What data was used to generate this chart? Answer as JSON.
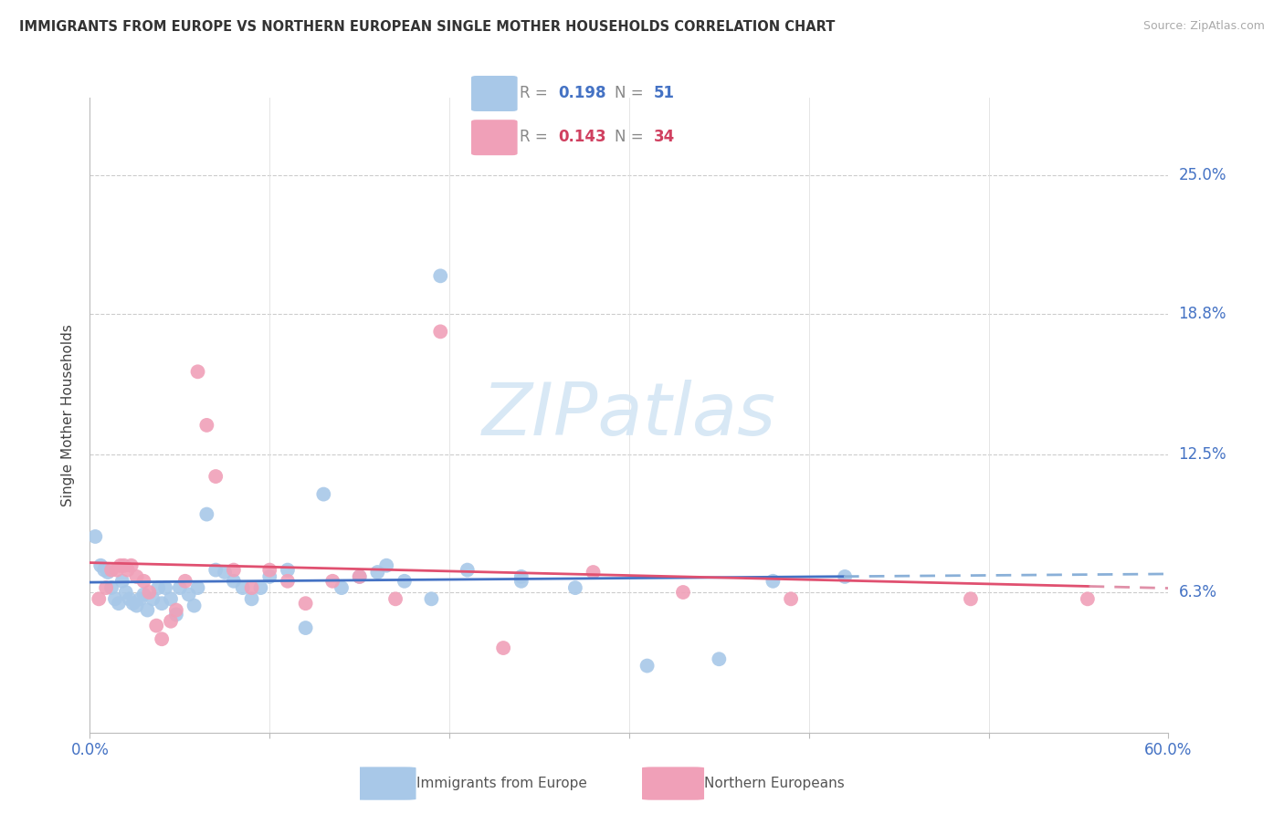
{
  "title": "IMMIGRANTS FROM EUROPE VS NORTHERN EUROPEAN SINGLE MOTHER HOUSEHOLDS CORRELATION CHART",
  "source": "Source: ZipAtlas.com",
  "ylabel": "Single Mother Households",
  "yticks": [
    "25.0%",
    "18.8%",
    "12.5%",
    "6.3%"
  ],
  "ytick_vals": [
    0.25,
    0.188,
    0.125,
    0.063
  ],
  "xrange": [
    0.0,
    0.6
  ],
  "yrange": [
    0.0,
    0.285
  ],
  "legend1_r": "0.198",
  "legend1_n": "51",
  "legend2_r": "0.143",
  "legend2_n": "34",
  "color_blue": "#a8c8e8",
  "color_pink": "#f0a0b8",
  "color_blue_text": "#4472c4",
  "color_pink_text": "#d04060",
  "color_axis_label": "#4472c4",
  "watermark_color": "#d8e8f5",
  "blue_x": [
    0.003,
    0.006,
    0.008,
    0.01,
    0.012,
    0.014,
    0.016,
    0.018,
    0.02,
    0.022,
    0.024,
    0.026,
    0.028,
    0.03,
    0.032,
    0.035,
    0.038,
    0.04,
    0.042,
    0.045,
    0.048,
    0.05,
    0.055,
    0.058,
    0.06,
    0.065,
    0.07,
    0.075,
    0.08,
    0.085,
    0.09,
    0.095,
    0.1,
    0.11,
    0.12,
    0.13,
    0.14,
    0.15,
    0.16,
    0.175,
    0.19,
    0.21,
    0.24,
    0.27,
    0.31,
    0.35,
    0.24,
    0.165,
    0.195,
    0.42,
    0.38
  ],
  "blue_y": [
    0.088,
    0.075,
    0.073,
    0.072,
    0.065,
    0.06,
    0.058,
    0.068,
    0.063,
    0.06,
    0.058,
    0.057,
    0.06,
    0.062,
    0.055,
    0.06,
    0.065,
    0.058,
    0.065,
    0.06,
    0.053,
    0.065,
    0.062,
    0.057,
    0.065,
    0.098,
    0.073,
    0.072,
    0.068,
    0.065,
    0.06,
    0.065,
    0.07,
    0.073,
    0.047,
    0.107,
    0.065,
    0.07,
    0.072,
    0.068,
    0.06,
    0.073,
    0.07,
    0.065,
    0.03,
    0.033,
    0.068,
    0.075,
    0.205,
    0.07,
    0.068
  ],
  "pink_x": [
    0.005,
    0.009,
    0.012,
    0.015,
    0.017,
    0.019,
    0.021,
    0.023,
    0.026,
    0.03,
    0.033,
    0.037,
    0.04,
    0.045,
    0.048,
    0.053,
    0.06,
    0.065,
    0.07,
    0.08,
    0.09,
    0.1,
    0.11,
    0.12,
    0.135,
    0.15,
    0.17,
    0.195,
    0.23,
    0.28,
    0.33,
    0.39,
    0.49,
    0.555
  ],
  "pink_y": [
    0.06,
    0.065,
    0.073,
    0.073,
    0.075,
    0.075,
    0.073,
    0.075,
    0.07,
    0.068,
    0.063,
    0.048,
    0.042,
    0.05,
    0.055,
    0.068,
    0.162,
    0.138,
    0.115,
    0.073,
    0.065,
    0.073,
    0.068,
    0.058,
    0.068,
    0.07,
    0.06,
    0.18,
    0.038,
    0.072,
    0.063,
    0.06,
    0.06,
    0.06
  ]
}
